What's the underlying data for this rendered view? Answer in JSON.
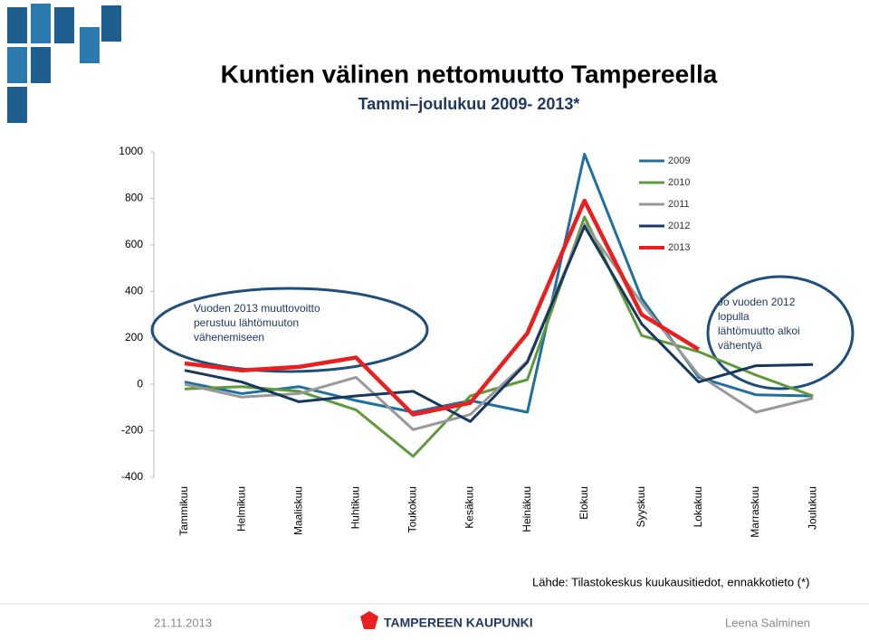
{
  "chart_data": {
    "type": "line",
    "title": "Kuntien välinen nettomuutto Tampereella",
    "subtitle": "Tammi–joulukuu 2009- 2013*",
    "categories": [
      "Tammikuu",
      "Helmikuu",
      "Maaliskuu",
      "Huhtikuu",
      "Toukokuu",
      "Kesäkuu",
      "Heinäkuu",
      "Elokuu",
      "Syyskuu",
      "Lokakuu",
      "Marraskuu",
      "Joulukuu"
    ],
    "series": [
      {
        "name": "2009",
        "color": "#1f6f9f",
        "values": [
          10,
          -40,
          -10,
          -70,
          -120,
          -70,
          -120,
          990,
          370,
          30,
          -45,
          -50
        ]
      },
      {
        "name": "2010",
        "color": "#5f9a3a",
        "values": [
          -20,
          -10,
          -30,
          -110,
          -310,
          -50,
          20,
          720,
          210,
          140,
          40,
          -50
        ]
      },
      {
        "name": "2011",
        "color": "#999999",
        "values": [
          0,
          -55,
          -40,
          30,
          -195,
          -130,
          100,
          690,
          350,
          40,
          -120,
          -60
        ]
      },
      {
        "name": "2012",
        "color": "#17375e",
        "values": [
          60,
          10,
          -75,
          -50,
          -30,
          -160,
          95,
          680,
          260,
          10,
          80,
          85
        ]
      },
      {
        "name": "2013",
        "color": "#e8201f",
        "values": [
          90,
          60,
          75,
          115,
          -130,
          -80,
          220,
          790,
          300,
          150,
          null,
          null
        ]
      }
    ],
    "ylim": [
      -400,
      1000
    ],
    "yticks": [
      -400,
      -200,
      0,
      200,
      400,
      600,
      800,
      1000
    ],
    "annotations": [
      "Vuoden 2013 muuttovoitto perustuu lähtömuuton vähenemiseen",
      "Jo vuoden 2012 lopulla lähtömuutto alkoi vähentyä"
    ],
    "source": "Lähde: Tilastokeskus kuukausitiedot, ennakkotieto (*)",
    "date": "21.11.2013",
    "organization": "TAMPEREEN KAUPUNKI",
    "author": "Leena Salminen"
  }
}
